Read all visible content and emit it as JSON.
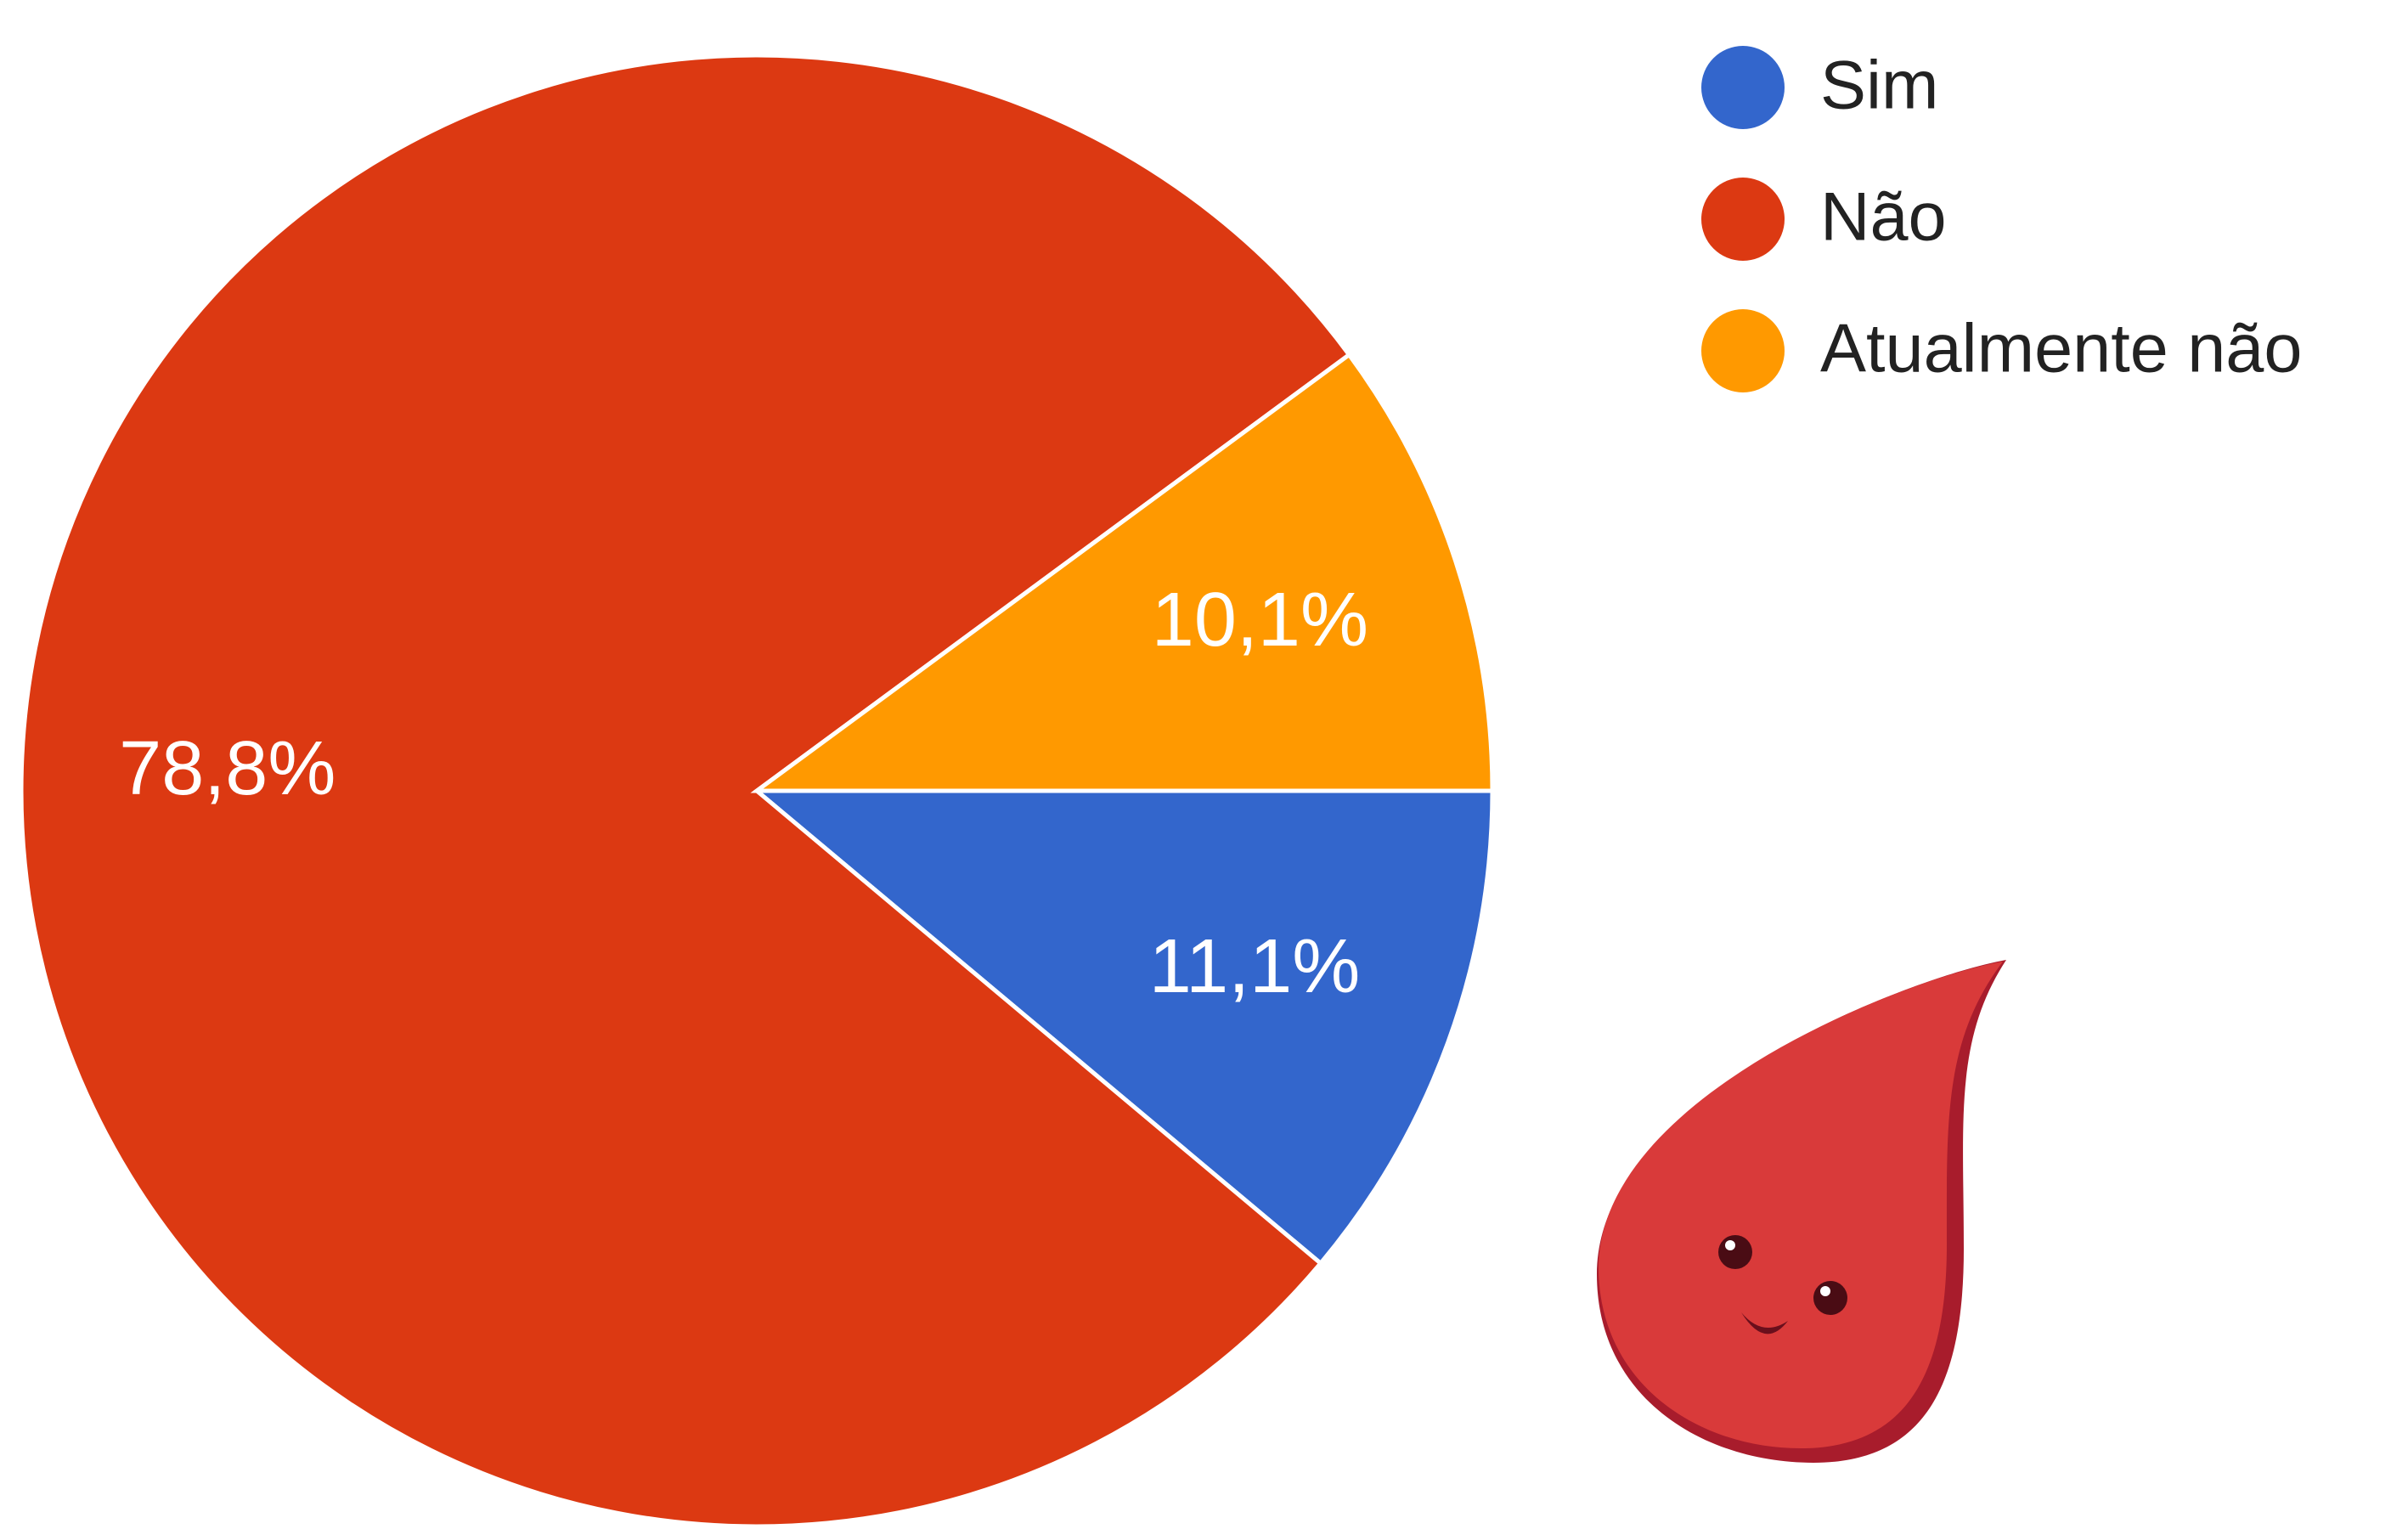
{
  "chart_data": {
    "type": "pie",
    "categories": [
      "Sim",
      "Não",
      "Atualmente não"
    ],
    "values": [
      11.1,
      78.8,
      10.1
    ],
    "value_labels": [
      "11,1%",
      "78,8%",
      "10,1%"
    ],
    "colors": [
      "#3366cc",
      "#dc3912",
      "#ff9900"
    ],
    "legend": "top-right"
  }
}
